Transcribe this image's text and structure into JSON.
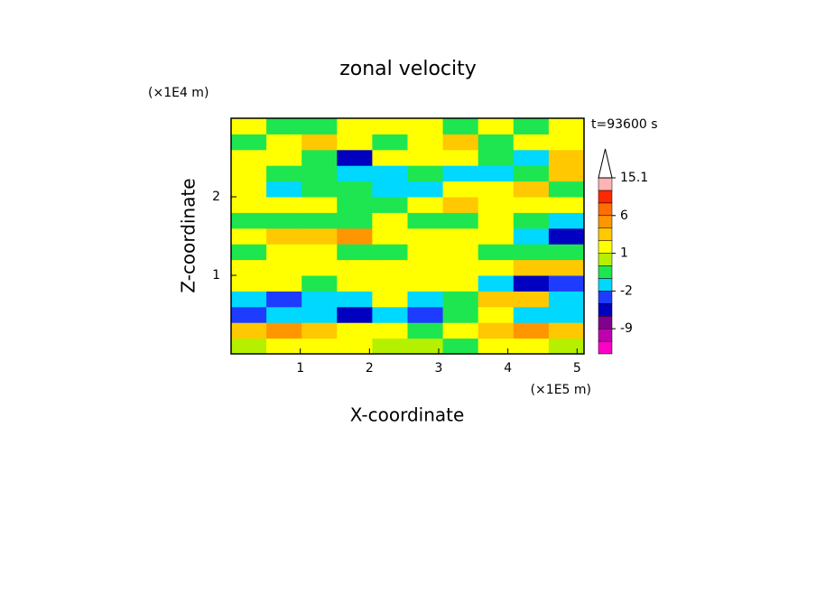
{
  "chart_data": {
    "type": "contour",
    "title": "zonal velocity",
    "time_label": "t=93600 s",
    "x_label": "X-coordinate",
    "x_unit": "(×1E5 m)",
    "y_label": "Z-coordinate",
    "y_unit": "(×1E4 m)",
    "xlim": [
      0,
      5.1
    ],
    "xticks": [
      1,
      2,
      3,
      4,
      5
    ],
    "ylim": [
      0,
      3
    ],
    "yticks": [
      1,
      2
    ],
    "x": [
      0.255,
      0.765,
      1.275,
      1.785,
      2.295,
      2.805,
      3.315,
      3.825,
      4.335,
      4.845
    ],
    "z": [
      0.1,
      0.3,
      0.5,
      0.7,
      0.9,
      1.1,
      1.3,
      1.5,
      1.7,
      1.9,
      2.1,
      2.3,
      2.5,
      2.7,
      2.9
    ],
    "values": [
      [
        0.5,
        1.5,
        1.5,
        1.5,
        0.5,
        0.5,
        -0.5,
        1.5,
        1.5,
        0.5
      ],
      [
        2.5,
        4,
        2.5,
        1.5,
        1.5,
        -0.5,
        1.5,
        2.5,
        4,
        2.5
      ],
      [
        -2.5,
        -1.5,
        -1.5,
        -4,
        -1.5,
        -2.5,
        -0.5,
        1.5,
        -1.5,
        -1.5
      ],
      [
        -1.5,
        -2.5,
        -1.5,
        -1.5,
        1.5,
        -1.5,
        -0.5,
        2.5,
        2.5,
        -1.5
      ],
      [
        1.5,
        1.5,
        -0.5,
        1.5,
        1.5,
        1.5,
        1.5,
        -1.5,
        -4,
        -2.5
      ],
      [
        1.5,
        1.5,
        1.5,
        1.5,
        1.5,
        1.5,
        1.5,
        1.5,
        2.5,
        2.5
      ],
      [
        -0.5,
        1.5,
        1.5,
        -0.5,
        -0.5,
        1.5,
        1.5,
        -0.5,
        -0.5,
        -0.5
      ],
      [
        1.5,
        2.5,
        2.5,
        4,
        1.5,
        1.5,
        1.5,
        1.5,
        -1.5,
        -4
      ],
      [
        -0.5,
        -0.5,
        -0.5,
        -0.5,
        1.5,
        -0.5,
        -0.5,
        1.5,
        -0.5,
        -1.5
      ],
      [
        1.5,
        1.5,
        1.5,
        -0.5,
        -0.5,
        1.5,
        2.5,
        1.5,
        1.5,
        1.5
      ],
      [
        1.5,
        -1.5,
        -0.5,
        -0.5,
        -1.5,
        -1.5,
        1.5,
        1.5,
        2.5,
        -0.5
      ],
      [
        1.5,
        -0.5,
        -0.5,
        -1.5,
        -1.5,
        -0.5,
        -1.5,
        -1.5,
        -0.5,
        2.5
      ],
      [
        1.5,
        1.5,
        -0.5,
        -4,
        1.5,
        1.5,
        1.5,
        -0.5,
        -1.5,
        2.5
      ],
      [
        -0.5,
        1.5,
        2.5,
        1.5,
        -0.5,
        1.5,
        2.5,
        -0.5,
        1.5,
        1.5
      ],
      [
        1.5,
        -0.5,
        -0.5,
        1.5,
        1.5,
        1.5,
        -0.5,
        1.5,
        -0.5,
        1.5
      ]
    ],
    "levels": [
      -15,
      -12,
      -9,
      -6,
      -3,
      -2,
      -1,
      0,
      1,
      2,
      3,
      6,
      9,
      12,
      15.1
    ],
    "colors": [
      "#ff00c8",
      "#c000b0",
      "#800090",
      "#0000c0",
      "#1e3cff",
      "#00d8ff",
      "#1ee650",
      "#b4f000",
      "#ffff00",
      "#ffc800",
      "#ff9600",
      "#ff6e00",
      "#ff2800",
      "#ffb4b4"
    ],
    "colorbar_ticks": [
      15.1,
      6,
      1,
      -2,
      -9
    ]
  }
}
